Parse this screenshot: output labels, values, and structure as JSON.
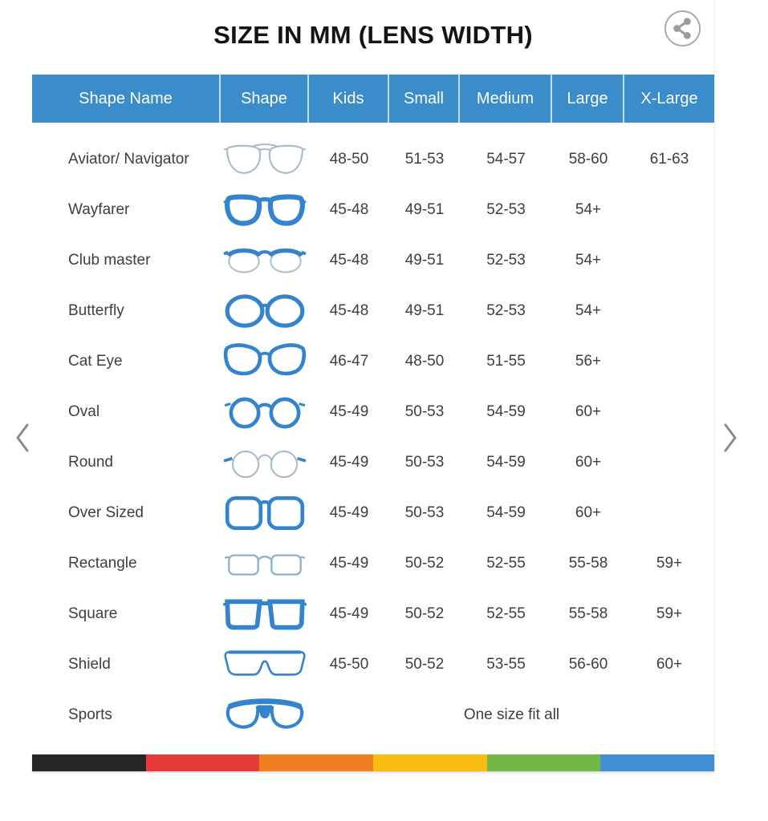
{
  "page": {
    "title": "SIZE IN MM (LENS WIDTH)"
  },
  "icons": {
    "share": "share-icon",
    "prev": "chevron-left-icon",
    "next": "chevron-right-icon"
  },
  "table": {
    "columns": [
      "Shape Name",
      "Shape",
      "Kids",
      "Small",
      "Medium",
      "Large",
      "X-Large"
    ],
    "rows": [
      {
        "name": "Aviator/ Navigator",
        "icon": "aviator-glasses-icon",
        "kids": "48-50",
        "small": "51-53",
        "medium": "54-57",
        "large": "58-60",
        "xlarge": "61-63"
      },
      {
        "name": "Wayfarer",
        "icon": "wayfarer-glasses-icon",
        "kids": "45-48",
        "small": "49-51",
        "medium": "52-53",
        "large": "54+",
        "xlarge": ""
      },
      {
        "name": "Club master",
        "icon": "clubmaster-glasses-icon",
        "kids": "45-48",
        "small": "49-51",
        "medium": "52-53",
        "large": "54+",
        "xlarge": ""
      },
      {
        "name": "Butterfly",
        "icon": "butterfly-glasses-icon",
        "kids": "45-48",
        "small": "49-51",
        "medium": "52-53",
        "large": "54+",
        "xlarge": ""
      },
      {
        "name": "Cat Eye",
        "icon": "cateye-glasses-icon",
        "kids": "46-47",
        "small": "48-50",
        "medium": "51-55",
        "large": "56+",
        "xlarge": ""
      },
      {
        "name": "Oval",
        "icon": "oval-glasses-icon",
        "kids": "45-49",
        "small": "50-53",
        "medium": "54-59",
        "large": "60+",
        "xlarge": ""
      },
      {
        "name": "Round",
        "icon": "round-glasses-icon",
        "kids": "45-49",
        "small": "50-53",
        "medium": "54-59",
        "large": "60+",
        "xlarge": ""
      },
      {
        "name": "Over Sized",
        "icon": "oversized-glasses-icon",
        "kids": "45-49",
        "small": "50-53",
        "medium": "54-59",
        "large": "60+",
        "xlarge": ""
      },
      {
        "name": "Rectangle",
        "icon": "rectangle-glasses-icon",
        "kids": "45-49",
        "small": "50-52",
        "medium": "52-55",
        "large": "55-58",
        "xlarge": "59+"
      },
      {
        "name": "Square",
        "icon": "square-glasses-icon",
        "kids": "45-49",
        "small": "50-52",
        "medium": "52-55",
        "large": "55-58",
        "xlarge": "59+"
      },
      {
        "name": "Shield",
        "icon": "shield-glasses-icon",
        "kids": "45-50",
        "small": "50-52",
        "medium": "53-55",
        "large": "56-60",
        "xlarge": "60+"
      },
      {
        "name": "Sports",
        "icon": "sports-glasses-icon",
        "span_text": "One size fit all"
      }
    ]
  },
  "footer_stripe": {
    "colors": [
      "#262626",
      "#e73b3b",
      "#ef7f20",
      "#fbbc12",
      "#73b844",
      "#4090d3"
    ]
  },
  "colors": {
    "header_bg": "#3a8ccb",
    "header_text": "#ffffff",
    "frame_blue": "#3384cd",
    "outline_gray": "#a8bac6"
  }
}
